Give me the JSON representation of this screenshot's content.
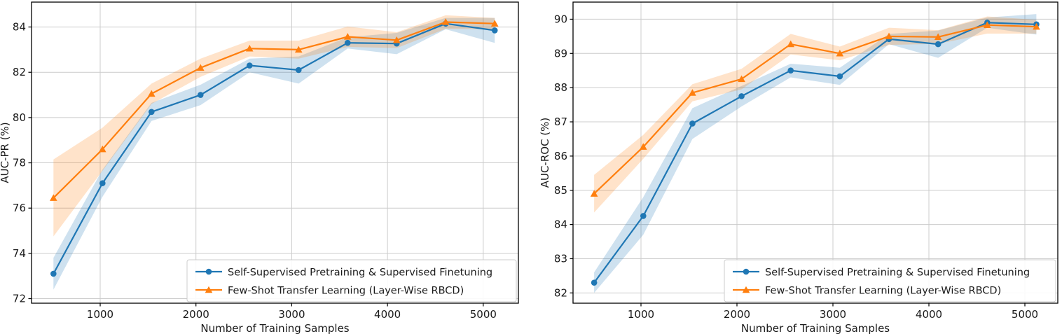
{
  "figure": {
    "background": "#ffffff",
    "text_color": "#1a1a1a",
    "grid_color": "#cccccc",
    "spine_color": "#000000"
  },
  "chart_data": [
    {
      "id": "auc-pr",
      "type": "line",
      "title": "",
      "xlabel": "Number of Training Samples",
      "ylabel": "AUC-PR (%)",
      "x": [
        512,
        1024,
        1536,
        2048,
        2560,
        3072,
        3584,
        4096,
        4608,
        5120
      ],
      "xticks": [
        1000,
        2000,
        3000,
        4000,
        5000
      ],
      "yticks": [
        72,
        74,
        76,
        78,
        80,
        82,
        84
      ],
      "xlim": [
        283,
        5367
      ],
      "ylim": [
        71.8,
        85.1
      ],
      "grid": true,
      "legend_position": "lower right",
      "series": [
        {
          "name": "Self-Supervised Pretraining & Supervised Finetuning",
          "color": "#1f77b4",
          "marker": "circle",
          "values": [
            73.1,
            77.1,
            80.25,
            81.0,
            82.3,
            82.1,
            83.3,
            83.27,
            84.15,
            83.85
          ],
          "band_half_width": [
            0.7,
            0.6,
            0.4,
            0.45,
            0.3,
            0.6,
            0.25,
            0.47,
            0.25,
            0.55
          ]
        },
        {
          "name": "Few-Shot Transfer Learning (Layer-Wise RBCD)",
          "color": "#ff7f0e",
          "marker": "triangle",
          "values": [
            76.45,
            78.6,
            81.05,
            82.2,
            83.05,
            83.0,
            83.57,
            83.42,
            84.22,
            84.15
          ],
          "band_half_width": [
            1.7,
            0.95,
            0.45,
            0.4,
            0.35,
            0.4,
            0.45,
            0.35,
            0.3,
            0.25
          ]
        }
      ]
    },
    {
      "id": "auc-roc",
      "type": "line",
      "title": "",
      "xlabel": "Number of Training Samples",
      "ylabel": "AUC-ROC (%)",
      "x": [
        512,
        1024,
        1536,
        2048,
        2560,
        3072,
        3584,
        4096,
        4608,
        5120
      ],
      "xticks": [
        1000,
        2000,
        3000,
        4000,
        5000
      ],
      "yticks": [
        82,
        83,
        84,
        85,
        86,
        87,
        88,
        89,
        90
      ],
      "xlim": [
        292,
        5343
      ],
      "ylim": [
        81.7,
        90.5
      ],
      "grid": true,
      "legend_position": "lower right",
      "series": [
        {
          "name": "Self-Supervised Pretraining & Supervised Finetuning",
          "color": "#1f77b4",
          "marker": "circle",
          "values": [
            82.3,
            84.25,
            86.95,
            87.75,
            88.5,
            88.33,
            89.42,
            89.27,
            89.9,
            89.85
          ],
          "band_half_width": [
            0.3,
            0.55,
            0.45,
            0.3,
            0.2,
            0.25,
            0.15,
            0.4,
            0.15,
            0.3
          ]
        },
        {
          "name": "Few-Shot Transfer Learning (Layer-Wise RBCD)",
          "color": "#ff7f0e",
          "marker": "triangle",
          "values": [
            84.9,
            86.27,
            87.85,
            88.25,
            89.27,
            89.0,
            89.5,
            89.48,
            89.83,
            89.78
          ],
          "band_half_width": [
            0.55,
            0.35,
            0.25,
            0.3,
            0.3,
            0.2,
            0.25,
            0.2,
            0.25,
            0.2
          ]
        }
      ]
    }
  ]
}
